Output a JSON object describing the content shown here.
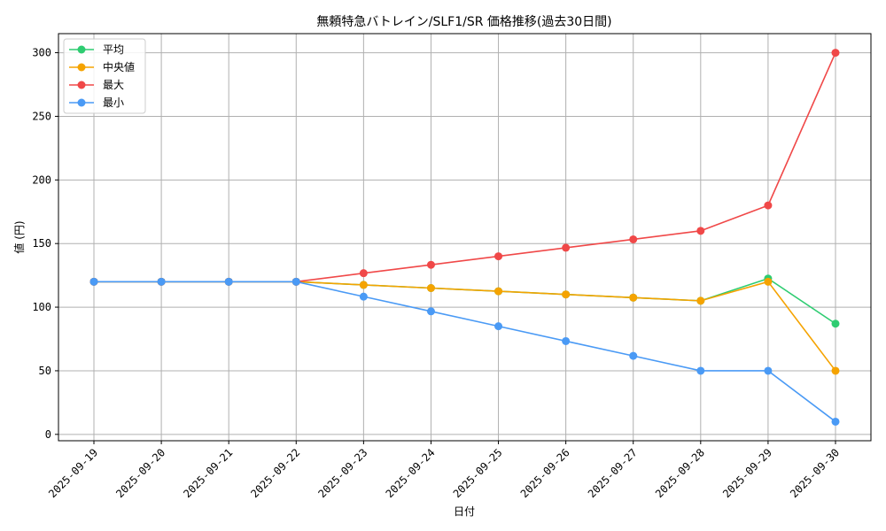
{
  "chart_data": {
    "type": "line",
    "title": "無頼特急バトレイン/SLF1/SR 価格推移(過去30日間)",
    "xlabel": "日付",
    "ylabel": "値 (円)",
    "ylim": [
      -5,
      315
    ],
    "yticks": [
      0,
      50,
      100,
      150,
      200,
      250,
      300
    ],
    "grid": true,
    "legend_position": "top-left",
    "categories": [
      "2025-09-19",
      "2025-09-20",
      "2025-09-21",
      "2025-09-22",
      "2025-09-23",
      "2025-09-24",
      "2025-09-25",
      "2025-09-26",
      "2025-09-27",
      "2025-09-28",
      "2025-09-29",
      "2025-09-30"
    ],
    "series": [
      {
        "name": "平均",
        "color": "#2ecc71",
        "values": [
          120,
          120,
          120,
          120,
          117.5,
          115,
          112.5,
          110,
          107.5,
          105,
          122.5,
          87
        ]
      },
      {
        "name": "中央値",
        "color": "#f5a300",
        "values": [
          120,
          120,
          120,
          120,
          117.5,
          115,
          112.5,
          110,
          107.5,
          105,
          120,
          50
        ]
      },
      {
        "name": "最大",
        "color": "#f04848",
        "values": [
          120,
          120,
          120,
          120,
          126.7,
          133.3,
          140,
          146.7,
          153.3,
          160,
          180,
          300
        ]
      },
      {
        "name": "最小",
        "color": "#4a9af5",
        "values": [
          120,
          120,
          120,
          120,
          108.3,
          96.7,
          85,
          73.3,
          61.7,
          50,
          50,
          10
        ]
      }
    ]
  }
}
